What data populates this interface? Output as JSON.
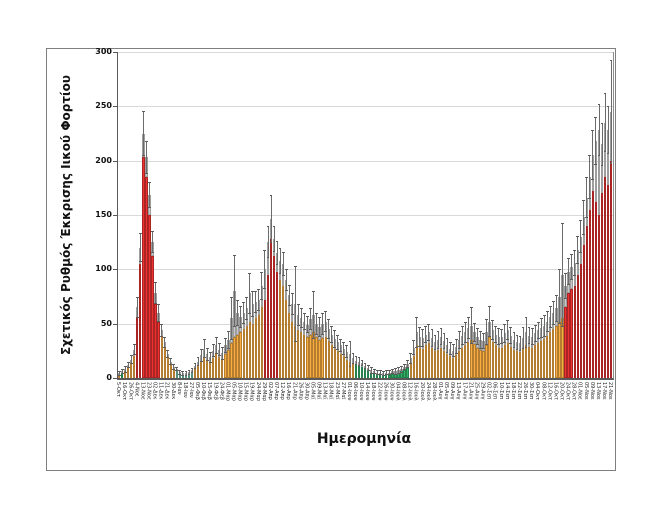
{
  "figure": {
    "y_axis_title": "Σχετικός Ρυθμός Έκκρισης Ιικού Φορτίου",
    "x_axis_title": "Ημερομηνία",
    "colors": {
      "increase_red": "#ee3233",
      "stable_orange": "#faae42",
      "decrease_green": "#33b46a",
      "low_teal": "#74c7a8",
      "uncertainty_gray": "#c9c9c9",
      "error_bar": "#6b6b6b",
      "gridline": "#d9d9d9",
      "axis": "#595959"
    }
  },
  "chart_data": {
    "type": "bar",
    "title": "",
    "ylabel": "Σχετικός Ρυθμός Έκκρισης Ιικού Φορτίου",
    "xlabel": "Ημερομηνία",
    "ylim": [
      0,
      300
    ],
    "y_ticks": [
      0,
      50,
      100,
      150,
      200,
      250,
      300
    ],
    "grid": "horizontal",
    "legend": "none",
    "bar_fields": [
      "label",
      "value",
      "gray_top",
      "error_top",
      "color_code"
    ],
    "color_codes": {
      "o": "stable_orange",
      "r": "increase_red",
      "g": "decrease_green",
      "t": "low_teal"
    },
    "bars": [
      [
        "5-Οκτ",
        3,
        4,
        6,
        "o"
      ],
      [
        "",
        4,
        6,
        8,
        "g"
      ],
      [
        "16-Οκτ",
        6,
        8,
        11,
        "o"
      ],
      [
        "",
        9,
        12,
        15,
        "o"
      ],
      [
        "26-Οκτ",
        13,
        17,
        21,
        "o"
      ],
      [
        "",
        20,
        26,
        31,
        "o"
      ],
      [
        "4-Νοε",
        55,
        65,
        75,
        "r"
      ],
      [
        "",
        105,
        120,
        133,
        "r"
      ],
      [
        "13-Νοε",
        203,
        225,
        246,
        "r"
      ],
      [
        "",
        185,
        203,
        218,
        "r"
      ],
      [
        "23-Νοε",
        150,
        168,
        180,
        "r"
      ],
      [
        "",
        112,
        125,
        135,
        "r"
      ],
      [
        "02-Δεκ",
        68,
        78,
        88,
        "r"
      ],
      [
        "",
        52,
        60,
        68,
        "r"
      ],
      [
        "11-Δεκ",
        38,
        44,
        50,
        "o"
      ],
      [
        "",
        28,
        33,
        38,
        "o"
      ],
      [
        "21-Δεκ",
        18,
        22,
        26,
        "o"
      ],
      [
        "",
        12,
        15,
        18,
        "o"
      ],
      [
        "30-Δεκ",
        8,
        10,
        13,
        "o"
      ],
      [
        "",
        6,
        8,
        10,
        "t"
      ],
      [
        "8-Ιαν",
        4,
        5,
        7,
        "t"
      ],
      [
        "",
        3,
        4,
        6,
        "t"
      ],
      [
        "18-Ιαν",
        3,
        4,
        6,
        "t"
      ],
      [
        "",
        4,
        5,
        7,
        "t"
      ],
      [
        "27-Ιαν",
        5,
        7,
        9,
        "t"
      ],
      [
        "",
        8,
        11,
        14,
        "o"
      ],
      [
        "05-Φεβ",
        11,
        15,
        19,
        "o"
      ],
      [
        "",
        15,
        21,
        27,
        "o"
      ],
      [
        "10-Φεβ",
        19,
        27,
        36,
        "o"
      ],
      [
        "",
        16,
        22,
        28,
        "o"
      ],
      [
        "15-Φεβ",
        14,
        19,
        24,
        "o"
      ],
      [
        "",
        18,
        25,
        31,
        "o"
      ],
      [
        "19-Φεβ",
        22,
        30,
        38,
        "o"
      ],
      [
        "",
        19,
        26,
        32,
        "o"
      ],
      [
        "24-Φεβ",
        17,
        23,
        29,
        "o"
      ],
      [
        "",
        22,
        30,
        37,
        "o"
      ],
      [
        "01-Μαρ",
        26,
        35,
        43,
        "o"
      ],
      [
        "",
        32,
        55,
        75,
        "o"
      ],
      [
        "05-Μαρ",
        38,
        80,
        113,
        "o"
      ],
      [
        "",
        40,
        60,
        72,
        "o"
      ],
      [
        "10-Μαρ",
        42,
        56,
        66,
        "o"
      ],
      [
        "",
        45,
        60,
        70,
        "o"
      ],
      [
        "15-Μαρ",
        48,
        64,
        75,
        "o"
      ],
      [
        "",
        52,
        78,
        97,
        "o"
      ],
      [
        "19-Μαρ",
        50,
        68,
        80,
        "o"
      ],
      [
        "",
        55,
        70,
        80,
        "o"
      ],
      [
        "24-Μαρ",
        58,
        72,
        82,
        "o"
      ],
      [
        "",
        65,
        85,
        98,
        "o"
      ],
      [
        "29-Μαρ",
        72,
        100,
        118,
        "r"
      ],
      [
        "",
        95,
        125,
        140,
        "r"
      ],
      [
        "02-Απρ",
        128,
        146,
        168,
        "r"
      ],
      [
        "",
        112,
        128,
        140,
        "r"
      ],
      [
        "07-Απρ",
        98,
        115,
        126,
        "r"
      ],
      [
        "",
        90,
        108,
        120,
        "o"
      ],
      [
        "12-Απρ",
        85,
        105,
        116,
        "o"
      ],
      [
        "",
        72,
        90,
        100,
        "o"
      ],
      [
        "16-Απρ",
        60,
        76,
        86,
        "o"
      ],
      [
        "",
        52,
        68,
        78,
        "o"
      ],
      [
        "21-Απρ",
        48,
        68,
        103,
        "o"
      ],
      [
        "",
        44,
        58,
        68,
        "o"
      ],
      [
        "26-Απρ",
        42,
        55,
        64,
        "o"
      ],
      [
        "",
        40,
        52,
        60,
        "o"
      ],
      [
        "30-Απρ",
        38,
        49,
        57,
        "o"
      ],
      [
        "",
        40,
        54,
        64,
        "o"
      ],
      [
        "05-Μαϊ",
        42,
        58,
        80,
        "o"
      ],
      [
        "",
        38,
        50,
        60,
        "o"
      ],
      [
        "09-Μαϊ",
        35,
        47,
        56,
        "o"
      ],
      [
        "",
        37,
        50,
        60,
        "o"
      ],
      [
        "13-Μαϊ",
        38,
        52,
        62,
        "o"
      ],
      [
        "",
        34,
        45,
        54,
        "o"
      ],
      [
        "18-Μαϊ",
        30,
        40,
        48,
        "o"
      ],
      [
        "",
        27,
        36,
        44,
        "o"
      ],
      [
        "23-Μαϊ",
        25,
        33,
        40,
        "o"
      ],
      [
        "",
        22,
        30,
        36,
        "o"
      ],
      [
        "27-Μαϊ",
        20,
        27,
        33,
        "o"
      ],
      [
        "",
        17,
        24,
        30,
        "o"
      ],
      [
        "01-Ιουν",
        15,
        22,
        34,
        "o"
      ],
      [
        "",
        13,
        18,
        23,
        "o"
      ],
      [
        "06-Ιουν",
        12,
        16,
        20,
        "g"
      ],
      [
        "",
        11,
        15,
        19,
        "g"
      ],
      [
        "10-Ιουν",
        10,
        14,
        17,
        "g"
      ],
      [
        "",
        8,
        11,
        14,
        "g"
      ],
      [
        "14-Ιουν",
        6,
        9,
        12,
        "g"
      ],
      [
        "",
        5,
        7,
        10,
        "g"
      ],
      [
        "18-Ιουν",
        4,
        6,
        8,
        "g"
      ],
      [
        "",
        3,
        5,
        7,
        "g"
      ],
      [
        "22-Ιουν",
        3,
        5,
        7,
        "g"
      ],
      [
        "",
        3,
        4,
        6,
        "g"
      ],
      [
        "26-Ιουν",
        3,
        5,
        7,
        "g"
      ],
      [
        "",
        3,
        5,
        7,
        "g"
      ],
      [
        "30-Ιουν",
        4,
        6,
        8,
        "g"
      ],
      [
        "",
        4,
        6,
        9,
        "g"
      ],
      [
        "04-Ιουλ",
        5,
        7,
        10,
        "g"
      ],
      [
        "",
        6,
        8,
        11,
        "g"
      ],
      [
        "08-Ιουλ",
        7,
        10,
        13,
        "g"
      ],
      [
        "",
        9,
        13,
        17,
        "g"
      ],
      [
        "12-Ιουλ",
        13,
        18,
        23,
        "o"
      ],
      [
        "",
        20,
        28,
        35,
        "o"
      ],
      [
        "16-Ιουλ",
        30,
        42,
        56,
        "o"
      ],
      [
        "",
        28,
        38,
        47,
        "o"
      ],
      [
        "20-Ιουλ",
        27,
        37,
        45,
        "o"
      ],
      [
        "",
        30,
        40,
        48,
        "o"
      ],
      [
        "24-Ιουλ",
        32,
        42,
        50,
        "o"
      ],
      [
        "",
        28,
        37,
        45,
        "o"
      ],
      [
        "28-Ιουλ",
        25,
        33,
        40,
        "o"
      ],
      [
        "",
        26,
        35,
        43,
        "o"
      ],
      [
        "01-Αυγ",
        28,
        38,
        46,
        "o"
      ],
      [
        "",
        25,
        34,
        41,
        "o"
      ],
      [
        "05-Αυγ",
        22,
        30,
        37,
        "o"
      ],
      [
        "",
        20,
        27,
        33,
        "o"
      ],
      [
        "09-Αυγ",
        18,
        25,
        31,
        "o"
      ],
      [
        "",
        21,
        29,
        36,
        "o"
      ],
      [
        "13-Αυγ",
        25,
        35,
        43,
        "o"
      ],
      [
        "",
        28,
        39,
        48,
        "o"
      ],
      [
        "17-Αυγ",
        30,
        42,
        52,
        "o"
      ],
      [
        "",
        33,
        46,
        56,
        "o"
      ],
      [
        "21-Αυγ",
        35,
        48,
        65,
        "o"
      ],
      [
        "",
        31,
        42,
        51,
        "o"
      ],
      [
        "25-Αυγ",
        28,
        38,
        46,
        "o"
      ],
      [
        "",
        26,
        35,
        43,
        "o"
      ],
      [
        "29-Αυγ",
        25,
        34,
        41,
        "o"
      ],
      [
        "",
        30,
        42,
        54,
        "o"
      ],
      [
        "02-Σεπ",
        38,
        52,
        66,
        "o"
      ],
      [
        "",
        33,
        44,
        53,
        "o"
      ],
      [
        "06-Σεπ",
        30,
        40,
        48,
        "o"
      ],
      [
        "",
        28,
        38,
        46,
        "o"
      ],
      [
        "10-Σεπ",
        28,
        38,
        45,
        "o"
      ],
      [
        "",
        30,
        41,
        50,
        "o"
      ],
      [
        "14-Σεπ",
        32,
        44,
        53,
        "o"
      ],
      [
        "",
        29,
        39,
        47,
        "o"
      ],
      [
        "18-Σεπ",
        26,
        35,
        42,
        "o"
      ],
      [
        "",
        25,
        33,
        40,
        "o"
      ],
      [
        "22-Σεπ",
        24,
        32,
        39,
        "o"
      ],
      [
        "",
        27,
        37,
        47,
        "o"
      ],
      [
        "26-Σεπ",
        30,
        42,
        56,
        "o"
      ],
      [
        "",
        29,
        39,
        47,
        "o"
      ],
      [
        "30-Σεπ",
        28,
        38,
        46,
        "o"
      ],
      [
        "",
        30,
        41,
        49,
        "o"
      ],
      [
        "04-Οκτ",
        32,
        44,
        52,
        "o"
      ],
      [
        "",
        34,
        46,
        55,
        "o"
      ],
      [
        "08-Οκτ",
        36,
        48,
        58,
        "o"
      ],
      [
        "",
        39,
        52,
        62,
        "o"
      ],
      [
        "12-Οκτ",
        42,
        56,
        66,
        "o"
      ],
      [
        "",
        45,
        60,
        71,
        "o"
      ],
      [
        "16-Οκτ",
        48,
        64,
        76,
        "o"
      ],
      [
        "",
        52,
        75,
        100,
        "o"
      ],
      [
        "20-Οκτ",
        55,
        95,
        143,
        "o"
      ],
      [
        "",
        65,
        85,
        97,
        "r"
      ],
      [
        "24-Οκτ",
        78,
        98,
        110,
        "r"
      ],
      [
        "",
        82,
        102,
        114,
        "r"
      ],
      [
        "28-Οκτ",
        85,
        106,
        118,
        "r"
      ],
      [
        "",
        95,
        118,
        131,
        "r"
      ],
      [
        "01-Νοε",
        105,
        130,
        145,
        "r"
      ],
      [
        "",
        122,
        148,
        164,
        "r"
      ],
      [
        "05-Νοε",
        140,
        166,
        185,
        "r"
      ],
      [
        "",
        155,
        185,
        205,
        "r"
      ],
      [
        "09-Νοε",
        172,
        205,
        228,
        "r"
      ],
      [
        "",
        162,
        218,
        240,
        "r"
      ],
      [
        "13-Νοε",
        150,
        228,
        252,
        "r"
      ],
      [
        "",
        170,
        215,
        235,
        "r"
      ],
      [
        "17-Νοε",
        185,
        235,
        262,
        "r"
      ],
      [
        "",
        178,
        228,
        250,
        "r"
      ],
      [
        "21-Νοε",
        200,
        245,
        293,
        "r"
      ]
    ]
  }
}
